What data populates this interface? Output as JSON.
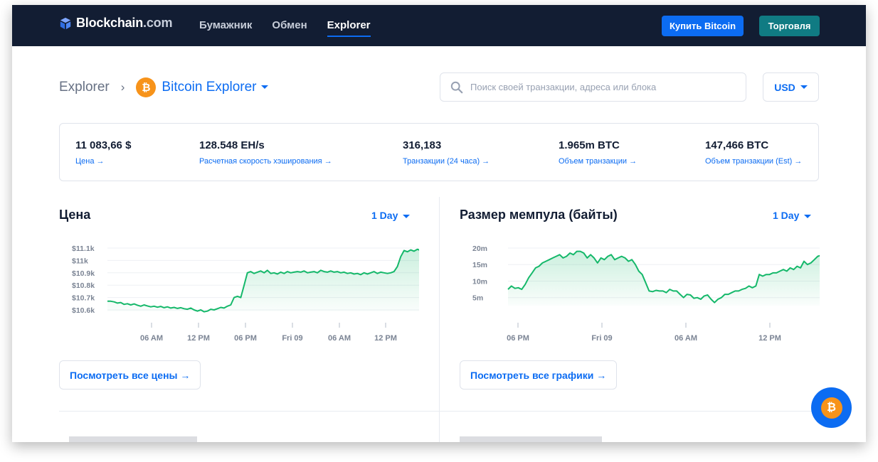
{
  "header": {
    "brand_main": "Blockchain",
    "brand_domain": ".com",
    "nav": [
      {
        "label": "Бумажник"
      },
      {
        "label": "Обмен"
      },
      {
        "label": "Explorer"
      }
    ],
    "buy_label": "Купить Bitcoin",
    "trade_label": "Торговля",
    "accent": "#0c6cf2",
    "bg": "#121d33"
  },
  "breadcrumb": {
    "root": "Explorer",
    "separator": "›",
    "current": "Bitcoin Explorer",
    "coin_symbol": "₿"
  },
  "search": {
    "placeholder": "Поиск своей транзакции, адреса или блока"
  },
  "currency": {
    "selected": "USD"
  },
  "stats": [
    {
      "value": "11 083,66 $",
      "link": "Цена →"
    },
    {
      "value": "128.548 EH/s",
      "link": "Расчетная скорость хэширования →"
    },
    {
      "value": "316,183",
      "link": "Транзакции (24 часа) →"
    },
    {
      "value": "1.965m BTC",
      "link": "Объем транзакции →"
    },
    {
      "value": "147,466 BTC",
      "link": "Объем транзакции (Est) →"
    }
  ],
  "price_panel": {
    "title": "Цена",
    "range": "1 Day",
    "button": "Посмотреть все цены →"
  },
  "mempool_panel": {
    "title": "Размер мемпула (байты)",
    "range": "1 Day",
    "button": "Посмотреть все графики →"
  },
  "chart_data": [
    {
      "type": "area",
      "title": "Цена",
      "y_ticks": [
        "$11.1k",
        "$11k",
        "$10.9k",
        "$10.8k",
        "$10.7k",
        "$10.6k"
      ],
      "y_tick_values": [
        11100,
        11000,
        10900,
        10800,
        10700,
        10600
      ],
      "x_ticks": [
        "06 AM",
        "12 PM",
        "06 PM",
        "Fri 09",
        "06 AM",
        "12 PM"
      ],
      "ylim": [
        10600,
        11100
      ],
      "color": "#15b86a",
      "series": [
        {
          "values": [
            10670,
            10670,
            10665,
            10655,
            10660,
            10645,
            10650,
            10640,
            10648,
            10638,
            10630,
            10640,
            10632,
            10625,
            10630,
            10622,
            10628,
            10618,
            10625,
            10615,
            10620,
            10612,
            10618,
            10610,
            10605,
            10615,
            10600,
            10590,
            10600,
            10585,
            10590,
            10605,
            10600,
            10610,
            10620,
            10615,
            10630,
            10640,
            10700,
            10710,
            10700,
            10800,
            10900,
            10910,
            10895,
            10905,
            10915,
            10900,
            10920,
            10895,
            10900,
            10890,
            10905,
            10895,
            10910,
            10900,
            10905,
            10910,
            10905,
            10915,
            10900,
            10905,
            10910,
            10900,
            10920,
            10910,
            10905,
            10915,
            10905,
            10910,
            10900,
            10905,
            10895,
            10900,
            10890,
            10895,
            10885,
            10900,
            10890,
            10900,
            10910,
            10895,
            10905,
            10900,
            10895,
            10900,
            10910,
            10950,
            11030,
            11080,
            11070,
            11085,
            11075,
            11090,
            11080,
            11090
          ]
        }
      ]
    },
    {
      "type": "area",
      "title": "Размер мемпула (байты)",
      "y_ticks": [
        "20m",
        "15m",
        "10m",
        "5m"
      ],
      "y_tick_values": [
        20,
        15,
        10,
        5
      ],
      "x_ticks": [
        "06 PM",
        "Fri 09",
        "06 AM",
        "12 PM"
      ],
      "ylim": [
        3,
        20
      ],
      "color": "#15b86a",
      "series": [
        {
          "values": [
            7.5,
            8.5,
            7.8,
            8,
            7.5,
            9,
            11,
            12.5,
            14,
            14.5,
            15.5,
            16,
            16.5,
            17,
            17.5,
            18,
            17,
            17.5,
            18.5,
            18,
            19,
            19,
            18.5,
            17,
            18,
            17,
            15.5,
            17,
            16.5,
            17.5,
            18,
            16.5,
            17,
            17.5,
            17,
            16,
            16.5,
            15,
            13,
            12,
            9.5,
            7,
            6.8,
            7.2,
            7,
            7,
            6.5,
            7.5,
            7,
            7,
            6,
            5,
            6,
            5.8,
            4.8,
            5,
            4.5,
            5.5,
            5.8,
            4.5,
            3.5,
            4.5,
            5,
            6,
            6,
            6.5,
            7,
            7,
            7.5,
            7.8,
            8.5,
            8,
            8.5,
            12,
            11.5,
            12,
            12,
            12.5,
            12.5,
            13,
            13.5,
            13,
            14,
            13.5,
            14.5,
            14,
            16,
            15,
            15.5,
            16.5,
            17.5,
            17.8,
            17.2
          ]
        }
      ]
    }
  ]
}
